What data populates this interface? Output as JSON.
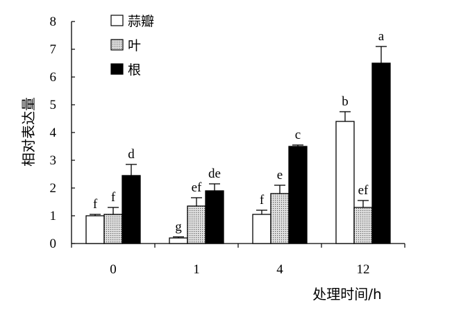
{
  "chart_data": {
    "type": "bar",
    "title": "",
    "xlabel": "处理时间/h",
    "ylabel": "相对表达量",
    "ylim": [
      0,
      8
    ],
    "yticks": [
      "0",
      "1",
      "2",
      "3",
      "4",
      "5",
      "6",
      "7",
      "8"
    ],
    "categories": [
      "0",
      "1",
      "4",
      "12"
    ],
    "legend_position": "top-left",
    "grid": false,
    "series": [
      {
        "name": "蒜瓣",
        "fill": "white",
        "values": [
          1.0,
          0.2,
          1.05,
          4.4
        ],
        "errors": [
          0.05,
          0.04,
          0.15,
          0.35
        ],
        "labels": [
          "f",
          "g",
          "f",
          "b"
        ]
      },
      {
        "name": "叶",
        "fill": "dotted",
        "values": [
          1.05,
          1.35,
          1.8,
          1.3
        ],
        "errors": [
          0.25,
          0.3,
          0.3,
          0.25
        ],
        "labels": [
          "f",
          "ef",
          "e",
          "ef"
        ]
      },
      {
        "name": "根",
        "fill": "black",
        "values": [
          2.45,
          1.9,
          3.5,
          6.5
        ],
        "errors": [
          0.4,
          0.25,
          0.05,
          0.6
        ],
        "labels": [
          "d",
          "de",
          "c",
          "a"
        ]
      }
    ],
    "colors": {
      "axis": "#000000",
      "black_fill": "#000000",
      "white_fill": "#ffffff",
      "dot_fill": "#dcdcdc",
      "dot_color": "#555555"
    }
  }
}
